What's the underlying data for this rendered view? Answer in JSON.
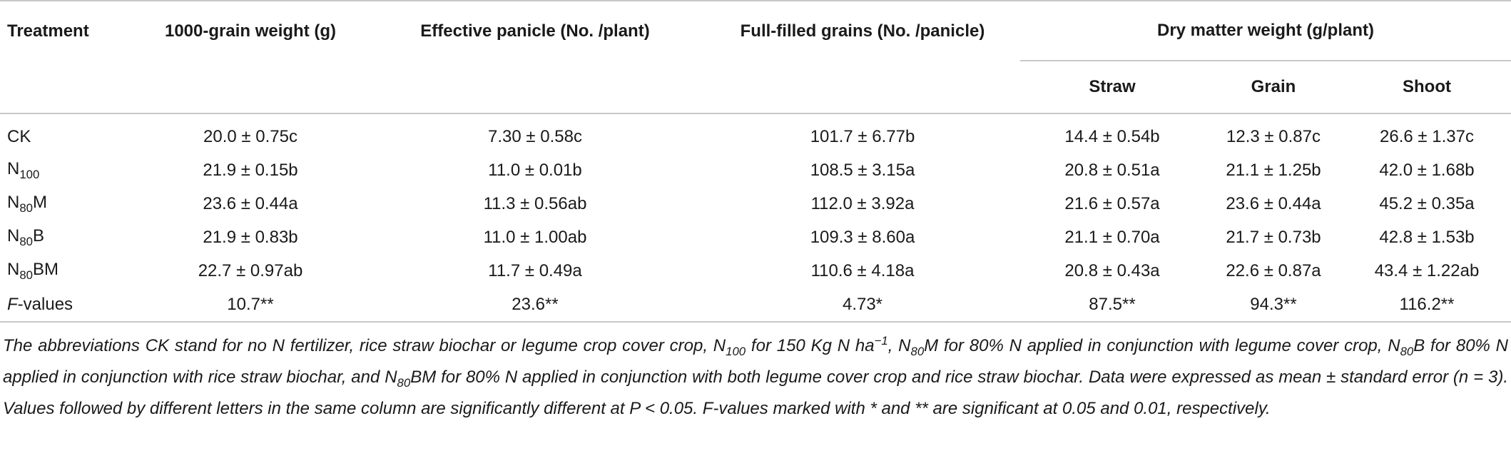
{
  "table": {
    "header": [
      "Treatment",
      "1000-grain weight (g)",
      "Effective panicle (No. /plant)",
      "Full-filled grains (No. /panicle)",
      "Dry matter weight (g/plant)"
    ],
    "subheader": [
      "Straw",
      "Grain",
      "Shoot"
    ],
    "rows": [
      {
        "treatment": [
          "CK"
        ],
        "cells": [
          "20.0 ± 0.75c",
          "7.30 ± 0.58c",
          "101.7 ± 6.77b",
          "14.4 ± 0.54b",
          "12.3 ± 0.87c",
          "26.6 ± 1.37c"
        ]
      },
      {
        "treatment": [
          "N",
          {
            "sub": "100"
          }
        ],
        "cells": [
          "21.9 ± 0.15b",
          "11.0 ± 0.01b",
          "108.5 ± 3.15a",
          "20.8 ± 0.51a",
          "21.1 ± 1.25b",
          "42.0 ± 1.68b"
        ]
      },
      {
        "treatment": [
          "N",
          {
            "sub": "80"
          },
          "M"
        ],
        "cells": [
          "23.6 ± 0.44a",
          "11.3 ± 0.56ab",
          "112.0 ± 3.92a",
          "21.6 ± 0.57a",
          "23.6 ± 0.44a",
          "45.2 ± 0.35a"
        ]
      },
      {
        "treatment": [
          "N",
          {
            "sub": "80"
          },
          "B"
        ],
        "cells": [
          "21.9 ± 0.83b",
          "11.0 ± 1.00ab",
          "109.3 ± 8.60a",
          "21.1 ± 0.70a",
          "21.7 ± 0.73b",
          "42.8 ± 1.53b"
        ]
      },
      {
        "treatment": [
          "N",
          {
            "sub": "80"
          },
          "BM"
        ],
        "cells": [
          "22.7 ± 0.97ab",
          "11.7 ± 0.49a",
          "110.6 ± 4.18a",
          "20.8 ± 0.43a",
          "22.6 ± 0.87a",
          "43.4 ± 1.22ab"
        ]
      },
      {
        "treatment": [
          {
            "i": "F"
          },
          "-values"
        ],
        "cells": [
          "10.7**",
          "23.6**",
          "4.73*",
          "87.5**",
          "94.3**",
          "116.2**"
        ]
      }
    ]
  },
  "footnote": [
    "The abbreviations CK stand for no N fertilizer, rice straw biochar or legume crop cover crop, N",
    {
      "sub": "100"
    },
    " for 150 Kg N ha",
    {
      "sup": "−1"
    },
    ", N",
    {
      "sub": "80"
    },
    "M for 80% N applied in conjunction with legume cover crop, N",
    {
      "sub": "80"
    },
    "B for 80% N applied in conjunction with rice straw biochar, and N",
    {
      "sub": "80"
    },
    "BM for 80% N applied in conjunction with both legume cover crop and rice straw biochar. Data were expressed as mean ± standard error (n = 3). Values followed by different letters in the same column are significantly different at P < 0.05. F-values marked with * and ** are significant at 0.05 and 0.01, respectively."
  ]
}
